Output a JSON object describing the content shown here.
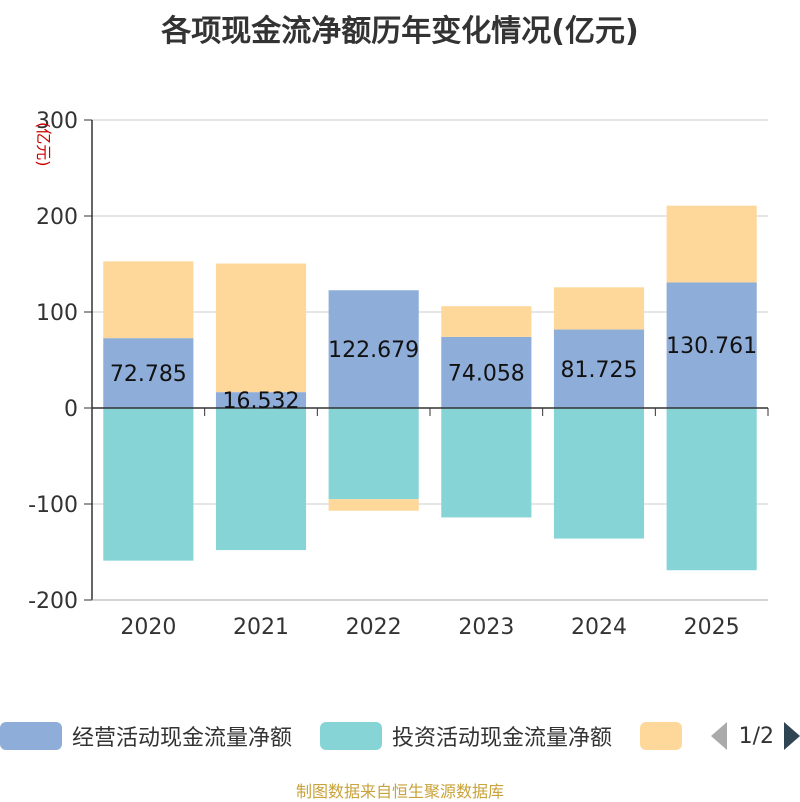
{
  "chart_data": {
    "type": "bar",
    "stacked": true,
    "title": "各项现金流净额历年变化情况(亿元)",
    "ylabel": "(亿元)",
    "xlabel": "",
    "ylim": [
      -200,
      300
    ],
    "yticks": [
      300,
      200,
      100,
      0,
      -100,
      -200
    ],
    "grid": true,
    "categories": [
      "2020",
      "2021",
      "2022",
      "2023",
      "2024",
      "2025"
    ],
    "series": [
      {
        "name": "经营活动现金流量净额",
        "color": "#8fadd9",
        "values": [
          72.785,
          16.532,
          122.679,
          74.058,
          81.725,
          130.761
        ],
        "show_labels": true
      },
      {
        "name": "投资活动现金流量净额",
        "color": "#87d4d6",
        "values": [
          -159,
          -148,
          -95,
          -114,
          -136,
          -169
        ],
        "show_labels": false
      },
      {
        "name": "",
        "color": "#fdd89a",
        "values": [
          80,
          134,
          -12,
          32,
          44,
          80
        ],
        "show_labels": false
      }
    ],
    "legend_position": "bottom"
  },
  "legend": {
    "items": [
      "经营活动现金流量净额",
      "投资活动现金流量净额",
      ""
    ],
    "page": "1/2"
  },
  "source": "制图数据来自恒生聚源数据库"
}
